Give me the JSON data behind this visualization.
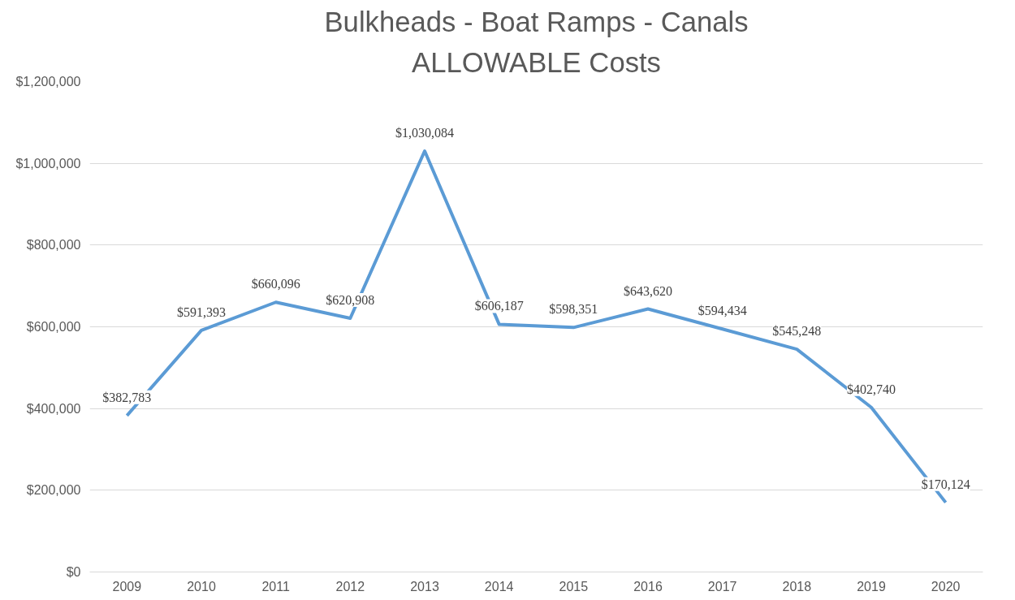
{
  "chart_data": {
    "type": "line",
    "title": "Bulkheads - Boat Ramps - Canals",
    "subtitle": "ALLOWABLE Costs",
    "categories": [
      "2009",
      "2010",
      "2011",
      "2012",
      "2013",
      "2014",
      "2015",
      "2016",
      "2017",
      "2018",
      "2019",
      "2020"
    ],
    "series": [
      {
        "color": "#5b9bd5",
        "values": [
          382783,
          591393,
          660096,
          620908,
          1030084,
          606187,
          598351,
          643620,
          594434,
          545248,
          402740,
          170124
        ]
      }
    ],
    "value_labels": [
      "$382,783",
      "$591,393",
      "$660,096",
      "$620,908",
      "$1,030,084",
      "$606,187",
      "$598,351",
      "$643,620",
      "$594,434",
      "$545,248",
      "$402,740",
      "$170,124"
    ],
    "ylim": [
      0,
      1200000
    ],
    "yticks": [
      {
        "value": 0,
        "label": "$0"
      },
      {
        "value": 200000,
        "label": "$200,000"
      },
      {
        "value": 400000,
        "label": "$400,000"
      },
      {
        "value": 600000,
        "label": "$600,000"
      },
      {
        "value": 800000,
        "label": "$800,000"
      },
      {
        "value": 1000000,
        "label": "$1,000,000"
      },
      {
        "value": 1200000,
        "label": "$1,200,000"
      }
    ],
    "grid": "y",
    "marker": "none",
    "line_style": "solid"
  }
}
